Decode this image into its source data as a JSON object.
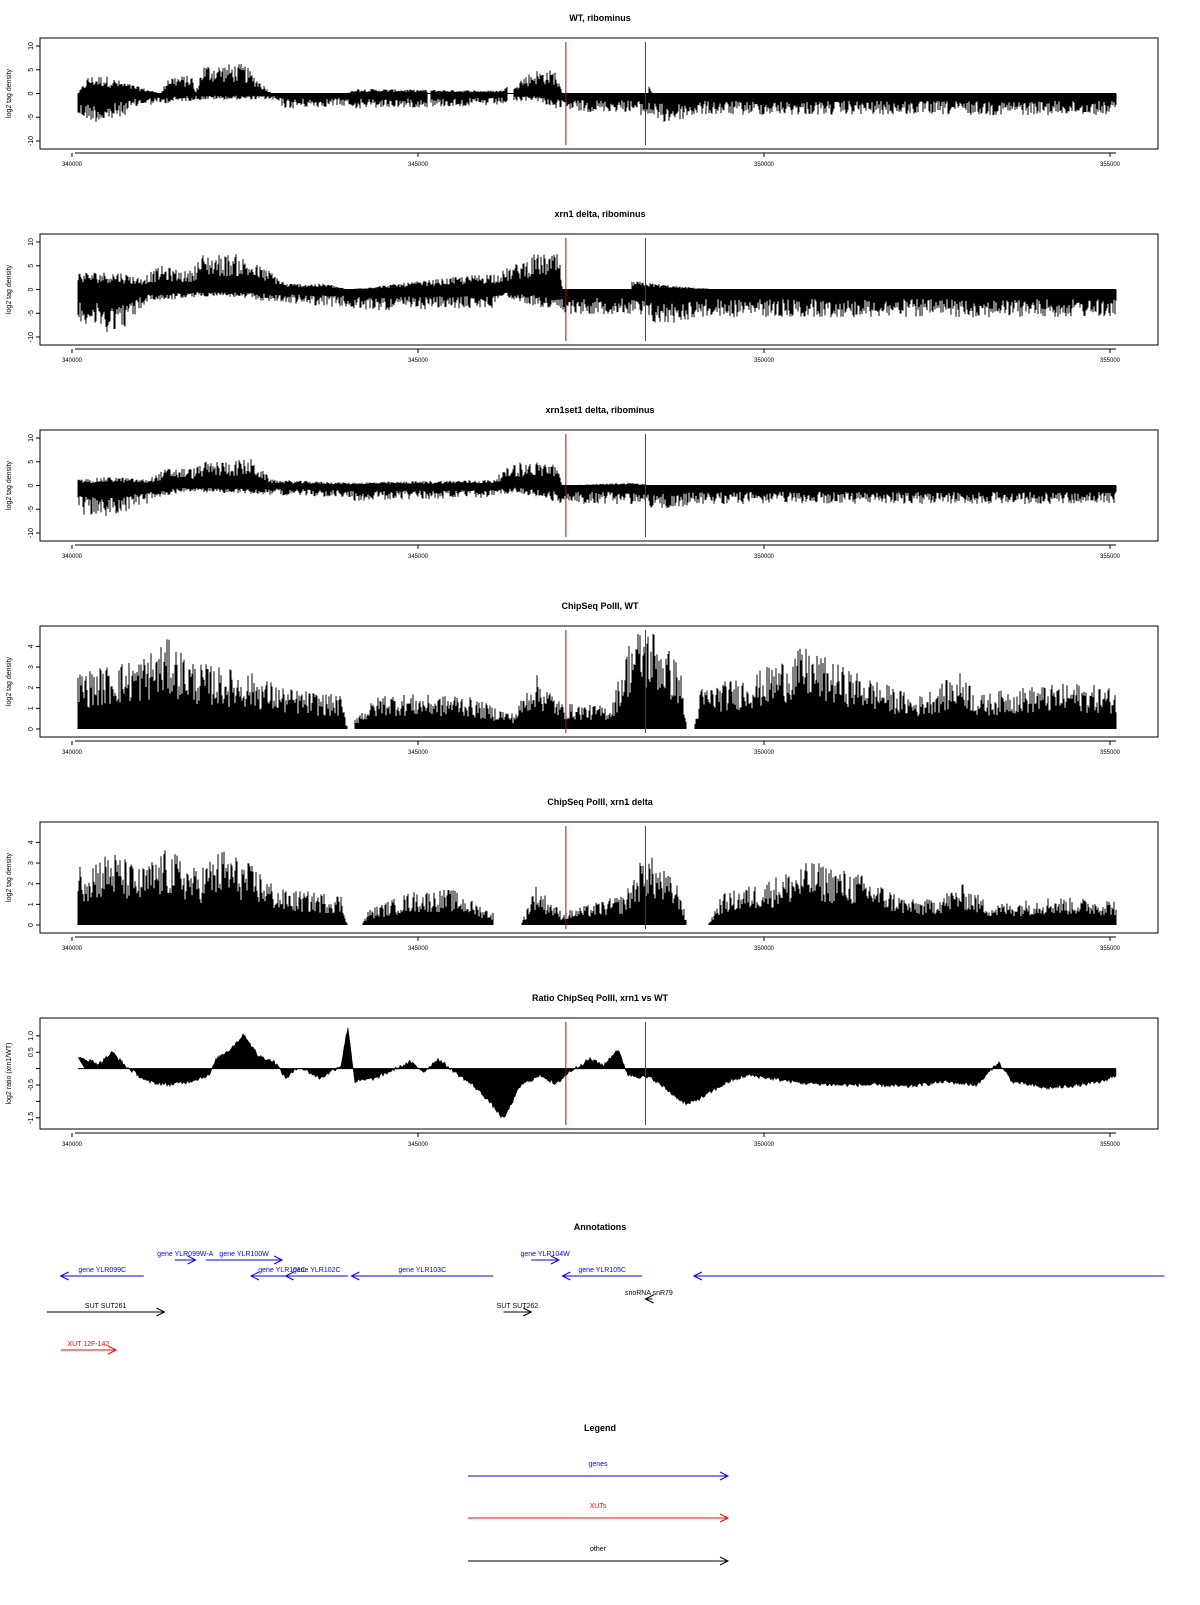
{
  "red_color": "#cc0000",
  "chart_data": [
    {
      "type": "bar",
      "direction": "signed",
      "title": "WT, ribominus",
      "ylabel": "log2 tag density",
      "xlim": [
        340000,
        355000
      ],
      "ylim": [
        -10,
        10
      ],
      "yticks": [
        -10,
        -5,
        0,
        5,
        10
      ],
      "yticklabels": [
        "-10",
        "-5",
        "0",
        "5",
        "10"
      ],
      "xticks": [
        340000,
        345000,
        350000,
        355000
      ],
      "xticklabels": [
        "340000",
        "345000",
        "350000",
        "355000"
      ],
      "vlines": [
        347050,
        348200
      ],
      "profile_pos": [
        [
          340000,
          0
        ],
        [
          340150,
          3
        ],
        [
          340400,
          3
        ],
        [
          340650,
          2
        ],
        [
          341200,
          0
        ],
        [
          341300,
          3
        ],
        [
          341650,
          3
        ],
        [
          341700,
          0
        ],
        [
          341800,
          5
        ],
        [
          342400,
          5
        ],
        [
          342800,
          0
        ],
        [
          343900,
          0
        ],
        [
          344000,
          0.8
        ],
        [
          346100,
          0.5
        ],
        [
          346600,
          4
        ],
        [
          346900,
          4
        ],
        [
          347000,
          0
        ],
        [
          348250,
          0
        ],
        [
          348250,
          1.5
        ],
        [
          348300,
          0
        ],
        [
          355000,
          0
        ]
      ],
      "profile_neg": [
        [
          340000,
          -4
        ],
        [
          340400,
          -5
        ],
        [
          340600,
          -4
        ],
        [
          340900,
          -2
        ],
        [
          341800,
          -1
        ],
        [
          342800,
          -1
        ],
        [
          343000,
          -2.5
        ],
        [
          343900,
          -2
        ],
        [
          344000,
          -2.5
        ],
        [
          346000,
          -2
        ],
        [
          346600,
          -1
        ],
        [
          347000,
          -3
        ],
        [
          348000,
          -3
        ],
        [
          348500,
          -5
        ],
        [
          349000,
          -3.5
        ],
        [
          350000,
          -3.5
        ],
        [
          352000,
          -3.5
        ],
        [
          355000,
          -3.5
        ]
      ],
      "gaps": [
        [
          345050,
          345100
        ],
        [
          346200,
          346300
        ]
      ]
    },
    {
      "type": "bar",
      "direction": "signed",
      "title": "xrn1 delta, ribominus",
      "ylabel": "log2 tag density",
      "xlim": [
        340000,
        355000
      ],
      "ylim": [
        -10,
        10
      ],
      "yticks": [
        -10,
        -5,
        0,
        5,
        10
      ],
      "yticklabels": [
        "-10",
        "-5",
        "0",
        "5",
        "10"
      ],
      "xticks": [
        340000,
        345000,
        350000,
        355000
      ],
      "xticklabels": [
        "340000",
        "345000",
        "350000",
        "355000"
      ],
      "vlines": [
        347050,
        348200
      ],
      "profile_pos": [
        [
          340000,
          3
        ],
        [
          340600,
          3
        ],
        [
          340900,
          2
        ],
        [
          341200,
          4
        ],
        [
          341600,
          3
        ],
        [
          341800,
          6
        ],
        [
          342300,
          6
        ],
        [
          342800,
          3
        ],
        [
          343000,
          1
        ],
        [
          343600,
          1
        ],
        [
          343900,
          0
        ],
        [
          346100,
          3
        ],
        [
          346600,
          6
        ],
        [
          346950,
          6
        ],
        [
          347000,
          0
        ],
        [
          348000,
          0
        ],
        [
          348000,
          1.5
        ],
        [
          348700,
          0.5
        ],
        [
          349300,
          0
        ],
        [
          355000,
          0
        ]
      ],
      "profile_neg": [
        [
          340000,
          -5
        ],
        [
          340400,
          -7
        ],
        [
          340700,
          -6
        ],
        [
          341000,
          -2
        ],
        [
          342000,
          -1
        ],
        [
          342800,
          -2
        ],
        [
          343900,
          -3
        ],
        [
          344000,
          -3.5
        ],
        [
          346000,
          -3
        ],
        [
          346100,
          -1
        ],
        [
          347000,
          -4
        ],
        [
          348000,
          -4
        ],
        [
          348400,
          -6
        ],
        [
          349000,
          -4.5
        ],
        [
          352000,
          -4.5
        ],
        [
          355000,
          -4.5
        ]
      ],
      "gaps": []
    },
    {
      "type": "bar",
      "direction": "signed",
      "title": "xrn1set1 delta, ribominus",
      "ylabel": "log2 tag density",
      "xlim": [
        340000,
        355000
      ],
      "ylim": [
        -10,
        10
      ],
      "yticks": [
        -10,
        -5,
        0,
        5,
        10
      ],
      "yticklabels": [
        "-10",
        "-5",
        "0",
        "5",
        "10"
      ],
      "xticks": [
        340000,
        345000,
        350000,
        355000
      ],
      "xticklabels": [
        "340000",
        "345000",
        "350000",
        "355000"
      ],
      "vlines": [
        347050,
        348200
      ],
      "profile_pos": [
        [
          340000,
          1
        ],
        [
          340500,
          1.5
        ],
        [
          341000,
          1
        ],
        [
          341300,
          3
        ],
        [
          341700,
          3
        ],
        [
          341800,
          4
        ],
        [
          342500,
          4.5
        ],
        [
          342800,
          1
        ],
        [
          343900,
          0.5
        ],
        [
          346000,
          1
        ],
        [
          346300,
          4
        ],
        [
          346900,
          4
        ],
        [
          347000,
          0
        ],
        [
          348000,
          0.5
        ],
        [
          348300,
          0
        ],
        [
          355000,
          0
        ]
      ],
      "profile_neg": [
        [
          340000,
          -5
        ],
        [
          340500,
          -5
        ],
        [
          341000,
          -3
        ],
        [
          341500,
          -1
        ],
        [
          342800,
          -1.5
        ],
        [
          343900,
          -2
        ],
        [
          344000,
          -2.5
        ],
        [
          346000,
          -2
        ],
        [
          346300,
          -1
        ],
        [
          347000,
          -3
        ],
        [
          348000,
          -3
        ],
        [
          348500,
          -4
        ],
        [
          349000,
          -3
        ],
        [
          352000,
          -3
        ],
        [
          355000,
          -3
        ]
      ],
      "gaps": []
    },
    {
      "type": "bar",
      "direction": "positive",
      "title": "ChipSeq PolII, WT",
      "ylabel": "log2 tag density",
      "xlim": [
        340000,
        355000
      ],
      "ylim": [
        0,
        4.6
      ],
      "yticks": [
        0,
        1,
        2,
        3,
        4
      ],
      "yticklabels": [
        "0",
        "1",
        "2",
        "3",
        "4"
      ],
      "xticks": [
        340000,
        345000,
        350000,
        355000
      ],
      "xticklabels": [
        "340000",
        "345000",
        "350000",
        "355000"
      ],
      "vlines": [
        347050,
        348200
      ],
      "profile_pos": [
        [
          340000,
          2.2
        ],
        [
          340900,
          2.8
        ],
        [
          341300,
          3.5
        ],
        [
          341700,
          2.6
        ],
        [
          342500,
          2.2
        ],
        [
          343000,
          1.6
        ],
        [
          343800,
          1.3
        ],
        [
          343900,
          0
        ],
        [
          344000,
          0.5
        ],
        [
          344400,
          1.4
        ],
        [
          345300,
          1.3
        ],
        [
          345500,
          1.4
        ],
        [
          346300,
          0.6
        ],
        [
          346600,
          2.2
        ],
        [
          347000,
          1
        ],
        [
          347700,
          0.9
        ],
        [
          348000,
          3.8
        ],
        [
          348300,
          4
        ],
        [
          348700,
          2.5
        ],
        [
          348800,
          0
        ],
        [
          348900,
          0
        ],
        [
          349000,
          1.6
        ],
        [
          349800,
          2.2
        ],
        [
          350500,
          3.2
        ],
        [
          351000,
          2.5
        ],
        [
          351900,
          1.5
        ],
        [
          352100,
          1.2
        ],
        [
          352800,
          2.3
        ],
        [
          353000,
          1.3
        ],
        [
          353500,
          1.6
        ],
        [
          354400,
          1.8
        ],
        [
          355000,
          1.6
        ]
      ],
      "profile_neg": [],
      "gaps": [
        [
          343900,
          344000
        ],
        [
          348800,
          348900
        ]
      ]
    },
    {
      "type": "bar",
      "direction": "positive",
      "title": "ChipSeq PolII, xrn1 delta",
      "ylabel": "log2 tag density",
      "xlim": [
        340000,
        355000
      ],
      "ylim": [
        0,
        4.6
      ],
      "yticks": [
        0,
        1,
        2,
        3,
        4
      ],
      "yticklabels": [
        "0",
        "1",
        "2",
        "3",
        "4"
      ],
      "xticks": [
        340000,
        345000,
        350000,
        355000
      ],
      "xticklabels": [
        "340000",
        "345000",
        "350000",
        "355000"
      ],
      "vlines": [
        347050,
        348200
      ],
      "profile_pos": [
        [
          340000,
          2.4
        ],
        [
          340500,
          2.9
        ],
        [
          340900,
          2.2
        ],
        [
          341300,
          3
        ],
        [
          341700,
          2.2
        ],
        [
          342100,
          3
        ],
        [
          342600,
          2.2
        ],
        [
          342900,
          1.4
        ],
        [
          343800,
          1.2
        ],
        [
          343900,
          0
        ],
        [
          344100,
          0
        ],
        [
          344200,
          0.6
        ],
        [
          344800,
          1.3
        ],
        [
          345400,
          1.4
        ],
        [
          346000,
          0.5
        ],
        [
          346400,
          0
        ],
        [
          346600,
          1.6
        ],
        [
          347000,
          0.5
        ],
        [
          347900,
          1.2
        ],
        [
          348200,
          2.9
        ],
        [
          348700,
          1.5
        ],
        [
          348800,
          0
        ],
        [
          349100,
          0
        ],
        [
          349300,
          1.2
        ],
        [
          349900,
          1.7
        ],
        [
          350600,
          2.5
        ],
        [
          351300,
          2
        ],
        [
          352000,
          1
        ],
        [
          352300,
          1
        ],
        [
          352800,
          1.6
        ],
        [
          353200,
          0.8
        ],
        [
          354000,
          1.1
        ],
        [
          355000,
          1
        ]
      ],
      "profile_neg": [],
      "gaps": [
        [
          343900,
          344100
        ],
        [
          346000,
          346400
        ],
        [
          348800,
          349100
        ]
      ]
    },
    {
      "type": "area",
      "title": "Ratio ChipSeq PolII, xrn1 vs WT",
      "ylabel": "log2 ratio (xrn1/WT)",
      "xlim": [
        340000,
        355000
      ],
      "ylim": [
        -1.6,
        1.3
      ],
      "yticks": [
        -1.5,
        -1.0,
        -0.5,
        0.0,
        0.5,
        1.0
      ],
      "yticklabels": [
        "-1.5",
        "",
        "-0.5",
        "",
        "0.5",
        "1.0"
      ],
      "xticks": [
        340000,
        345000,
        350000,
        355000
      ],
      "xticklabels": [
        "340000",
        "345000",
        "350000",
        "355000"
      ],
      "vlines": [
        347050,
        348200
      ],
      "ratio_profile": [
        [
          340100,
          0.3
        ],
        [
          340300,
          0.15
        ],
        [
          340500,
          0.5
        ],
        [
          340700,
          0.05
        ],
        [
          341000,
          -0.4
        ],
        [
          341300,
          -0.5
        ],
        [
          341600,
          -0.4
        ],
        [
          341900,
          -0.2
        ],
        [
          342000,
          0.3
        ],
        [
          342200,
          0.6
        ],
        [
          342400,
          1.05
        ],
        [
          342600,
          0.4
        ],
        [
          342850,
          0.2
        ],
        [
          343000,
          -0.3
        ],
        [
          343200,
          0.05
        ],
        [
          343500,
          -0.3
        ],
        [
          343800,
          0.1
        ],
        [
          343900,
          1.3
        ],
        [
          344000,
          -0.4
        ],
        [
          344300,
          -0.3
        ],
        [
          344800,
          0.2
        ],
        [
          345000,
          -0.1
        ],
        [
          345200,
          0.3
        ],
        [
          345500,
          -0.2
        ],
        [
          345700,
          -0.5
        ],
        [
          345900,
          -0.9
        ],
        [
          346150,
          -1.55
        ],
        [
          346400,
          -0.5
        ],
        [
          346700,
          -0.2
        ],
        [
          346900,
          -0.5
        ],
        [
          347100,
          -0.1
        ],
        [
          347400,
          0.3
        ],
        [
          347600,
          0.1
        ],
        [
          347800,
          0.6
        ],
        [
          347950,
          -0.2
        ],
        [
          348300,
          -0.3
        ],
        [
          348600,
          -0.8
        ],
        [
          348800,
          -1.1
        ],
        [
          349000,
          -0.9
        ],
        [
          349400,
          -0.4
        ],
        [
          349700,
          -0.2
        ],
        [
          350000,
          -0.3
        ],
        [
          350500,
          -0.45
        ],
        [
          351000,
          -0.5
        ],
        [
          351500,
          -0.5
        ],
        [
          352000,
          -0.55
        ],
        [
          352500,
          -0.4
        ],
        [
          353000,
          -0.5
        ],
        [
          353300,
          0.2
        ],
        [
          353500,
          -0.4
        ],
        [
          354000,
          -0.6
        ],
        [
          354500,
          -0.5
        ],
        [
          354800,
          -0.4
        ],
        [
          355000,
          -0.2
        ]
      ]
    }
  ],
  "annotations": {
    "title": "Annotations",
    "items": [
      {
        "label": "gene YLR099C",
        "color": "#0000ff",
        "strand": "-",
        "start": 339750,
        "end": 340950,
        "row": 2
      },
      {
        "label": "gene YLR099W-A",
        "color": "#0000ff",
        "strand": "+",
        "start": 341400,
        "end": 341700,
        "row": 1
      },
      {
        "label": "gene YLR100W",
        "color": "#0000ff",
        "strand": "+",
        "start": 341850,
        "end": 342950,
        "row": 1
      },
      {
        "label": "gene YLR101C",
        "color": "#0000ff",
        "strand": "-",
        "start": 342500,
        "end": 343400,
        "row": 2
      },
      {
        "label": "gene YLR102C",
        "color": "#0000ff",
        "strand": "-",
        "start": 343000,
        "end": 343900,
        "row": 2
      },
      {
        "label": "gene YLR103C",
        "color": "#0000ff",
        "strand": "-",
        "start": 343950,
        "end": 346000,
        "row": 2
      },
      {
        "label": "gene YLR104W",
        "color": "#0000ff",
        "strand": "+",
        "start": 346550,
        "end": 346950,
        "row": 1
      },
      {
        "label": "gene YLR105C",
        "color": "#0000ff",
        "strand": "-",
        "start": 347000,
        "end": 348150,
        "row": 2
      },
      {
        "label": "",
        "color": "#0000ff",
        "strand": "-",
        "start": 348900,
        "end": 355700,
        "row": 2
      },
      {
        "label": "snoRNA snR79",
        "color": "#000000",
        "strand": "-",
        "start": 348200,
        "end": 348300,
        "row": 3
      },
      {
        "label": "SUT SUT261",
        "color": "#000000",
        "strand": "+",
        "start": 339550,
        "end": 341250,
        "row": 4
      },
      {
        "label": "SUT SUT262",
        "color": "#000000",
        "strand": "+",
        "start": 346150,
        "end": 346550,
        "row": 4
      },
      {
        "label": "XUT 12F-142",
        "color": "#ff0000",
        "strand": "+",
        "start": 339750,
        "end": 340550,
        "row": 5
      }
    ]
  },
  "legend": {
    "title": "Legend",
    "items": [
      {
        "label": "genes",
        "color": "#0000ff"
      },
      {
        "label": "XUTs",
        "color": "#ff0000"
      },
      {
        "label": "other",
        "color": "#000000"
      }
    ]
  }
}
